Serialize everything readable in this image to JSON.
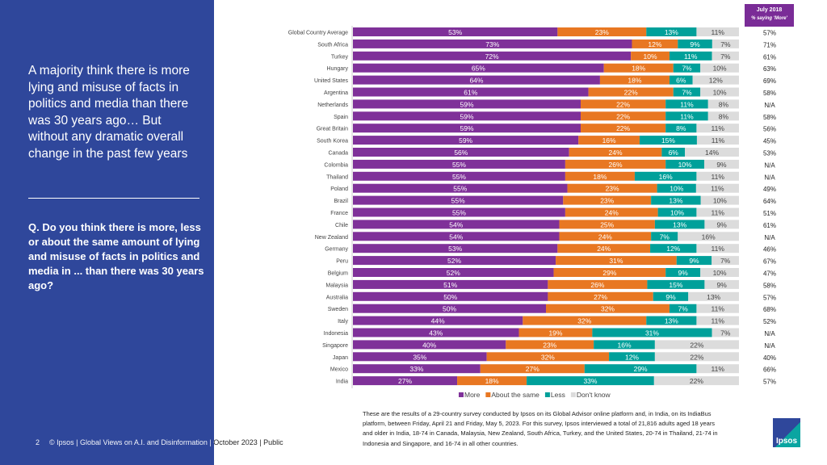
{
  "headline": "A majority think there is more lying and misuse of facts in politics and media than there was 30 years ago… But without any dramatic overall change in the past few years",
  "question": "Q. Do you think there is more, less or about the same amount of lying and misuse of facts in politics and media in ... than there was 30 years ago?",
  "footer": {
    "page": "2",
    "text": "© Ipsos | Global Views on A.I. and Disinformation | October 2023 | Public"
  },
  "note": "These are the results of a 29-country survey conducted by Ipsos on its Global Advisor online platform and, in India, on its IndiaBus platform, between Friday, April 21 and Friday, May 5, 2023. For this survey, Ipsos interviewed a total of 21,816 adults aged 18 years and older in India, 18-74 in Canada, Malaysia, New Zealand, South Africa, Turkey, and the United States, 20-74 in Thailand, 21-74 in Indonesia and Singapore, and 16-74 in all other countries.",
  "logo": "Ipsos",
  "comparison_header": {
    "title": "July 2018",
    "subtitle": "% saying 'More'"
  },
  "chart_data": {
    "type": "bar",
    "orientation": "horizontal-stacked",
    "categories": [
      "Global Country Average",
      "South Africa",
      "Turkey",
      "Hungary",
      "United States",
      "Argentina",
      "Netherlands",
      "Spain",
      "Great Britain",
      "South Korea",
      "Canada",
      "Colombia",
      "Thailand",
      "Poland",
      "Brazil",
      "France",
      "Chile",
      "New Zealand",
      "Germany",
      "Peru",
      "Belgium",
      "Malaysia",
      "Australia",
      "Sweden",
      "Italy",
      "Indonesia",
      "Singapore",
      "Japan",
      "Mexico",
      "India"
    ],
    "series": [
      {
        "name": "More",
        "color": "#7f3199",
        "values": [
          53,
          73,
          72,
          65,
          64,
          61,
          59,
          59,
          59,
          59,
          56,
          55,
          55,
          55,
          55,
          55,
          54,
          54,
          53,
          52,
          52,
          51,
          50,
          50,
          44,
          43,
          40,
          35,
          33,
          27
        ]
      },
      {
        "name": "About the same",
        "color": "#e87722",
        "values": [
          23,
          12,
          10,
          18,
          18,
          22,
          22,
          22,
          22,
          16,
          24,
          26,
          18,
          23,
          23,
          24,
          25,
          24,
          24,
          31,
          29,
          26,
          27,
          32,
          32,
          19,
          23,
          32,
          27,
          18
        ]
      },
      {
        "name": "Less",
        "color": "#00a09a",
        "values": [
          13,
          9,
          11,
          7,
          6,
          7,
          11,
          11,
          8,
          15,
          6,
          10,
          16,
          10,
          13,
          10,
          13,
          7,
          12,
          9,
          9,
          15,
          9,
          7,
          13,
          31,
          16,
          12,
          29,
          33
        ]
      },
      {
        "name": "Don't know",
        "color": "#dcdcdc",
        "values": [
          11,
          7,
          7,
          10,
          12,
          10,
          8,
          8,
          11,
          11,
          14,
          9,
          11,
          11,
          10,
          11,
          9,
          16,
          11,
          7,
          10,
          9,
          13,
          11,
          11,
          7,
          22,
          22,
          11,
          22
        ]
      }
    ],
    "july_2018_more": [
      "57%",
      "71%",
      "61%",
      "63%",
      "69%",
      "58%",
      "N/A",
      "58%",
      "56%",
      "45%",
      "53%",
      "N/A",
      "N/A",
      "49%",
      "64%",
      "51%",
      "61%",
      "N/A",
      "46%",
      "67%",
      "47%",
      "58%",
      "57%",
      "68%",
      "52%",
      "N/A",
      "N/A",
      "40%",
      "66%",
      "57%"
    ],
    "legend_placement": "bottom",
    "value_suffix": "%"
  }
}
